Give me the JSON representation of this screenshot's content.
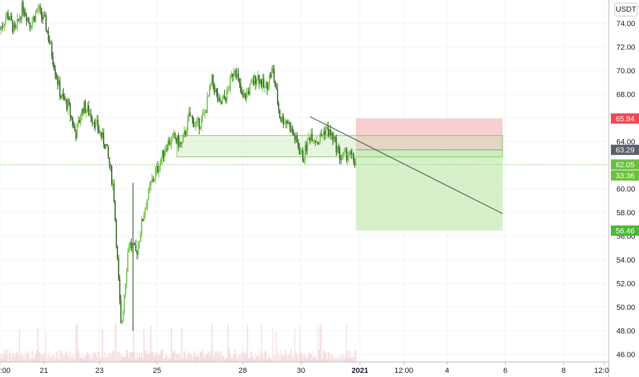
{
  "currency": "USDT",
  "colors": {
    "up": "#6bbf3e",
    "down": "#2b5f1a",
    "stop_zone": "#f7c6c9",
    "target_zone": "#c8ecb8",
    "zone_border": "#7fc45a",
    "trendline": "#4d5a4a",
    "last_price": "#6bbf3e",
    "stop_tag": "#f0484f",
    "entry_tag": "#5d606b",
    "target_tag": "#4cb833",
    "grid": "#f0f3fa"
  },
  "chart_data": {
    "type": "candlestick",
    "title": "",
    "xlabel": "",
    "ylabel": "",
    "ylim": [
      45.8,
      75.5
    ],
    "y_ticks": [
      46,
      48,
      50,
      52,
      54,
      56,
      58,
      60,
      62,
      64,
      66,
      68,
      70,
      72,
      74
    ],
    "x_ticks": [
      ":00",
      "21",
      "23",
      "25",
      "28",
      "30",
      "2021",
      "12:00",
      "4",
      "6",
      "8",
      "12:0"
    ],
    "price_tags": {
      "stop": "65.94",
      "entry": "63.29",
      "last": "62.05",
      "countdown": "33:36",
      "target": "56.46"
    },
    "support_zone": {
      "top": 64.5,
      "bottom": 62.7
    },
    "position": {
      "entry": 63.29,
      "stop": 65.94,
      "target": 56.46
    },
    "trendline": {
      "start": 66.1,
      "end": 57.9
    },
    "price_path": [
      73.5,
      74.8,
      73.2,
      75.5,
      73.9,
      75.2,
      74.0,
      71.0,
      67.9,
      67.0,
      64.6,
      67.0,
      66.3,
      65.0,
      63.6,
      60.0,
      48.0,
      55.5,
      54.5,
      58.0,
      60.5,
      62.0,
      63.8,
      64.3,
      63.6,
      66.2,
      65.3,
      66.2,
      69.2,
      67.0,
      68.0,
      70.5,
      67.5,
      68.5,
      69.6,
      68.4,
      70.1,
      66.0,
      65.7,
      64.2,
      62.6,
      64.7,
      64.0,
      65.1,
      64.3,
      62.6,
      63.0,
      62.1
    ]
  }
}
